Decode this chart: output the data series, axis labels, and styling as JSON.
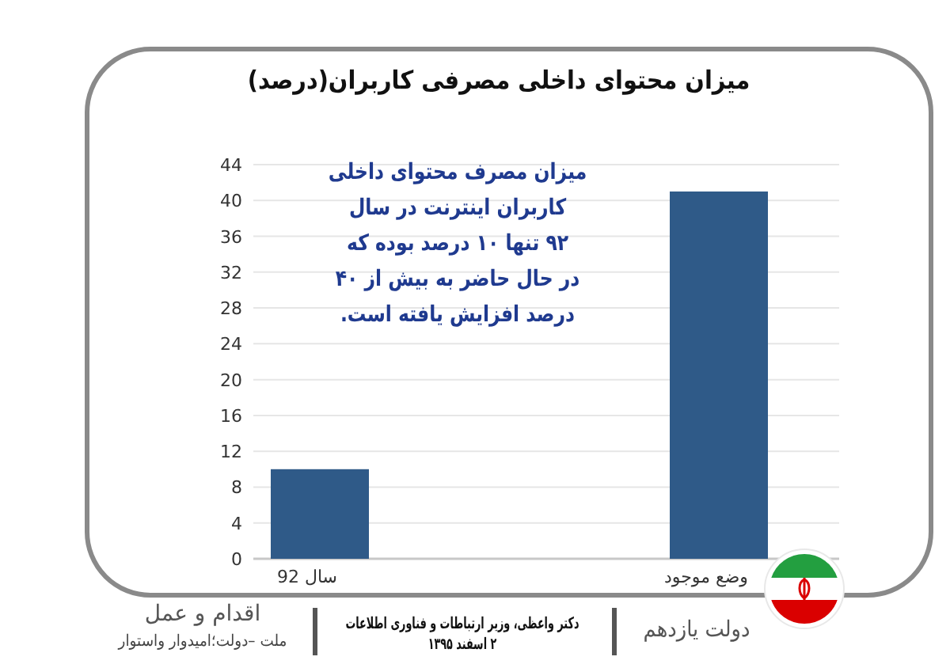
{
  "chart_data": {
    "type": "bar",
    "title": "میزان محتوای داخلی مصرفی کاربران(درصد)",
    "categories": [
      "سال 92",
      "وضع موجود"
    ],
    "values": [
      10,
      41
    ],
    "color": "#2f5a88",
    "ylim": [
      0,
      44
    ],
    "yticks": [
      0,
      4,
      8,
      12,
      16,
      20,
      24,
      28,
      32,
      36,
      40,
      44
    ],
    "grid": "y",
    "annotations": [
      "میزان مصرف محتوای داخلی\nکاربران اینترنت در سال\n۹۲ تنها ۱۰ درصد بوده که\nدر حال حاضر به بیش از ۴۰\nدرصد افزایش یافته است.",
      "اقدام و عمل",
      "ملت –دولت؛امیدوار واستوار",
      "دکتر واعظی، وزیر ارتباطات و فناوری اطلاعات\n۲ اسفند ۱۳۹۵",
      "دولت یازدهم"
    ]
  }
}
